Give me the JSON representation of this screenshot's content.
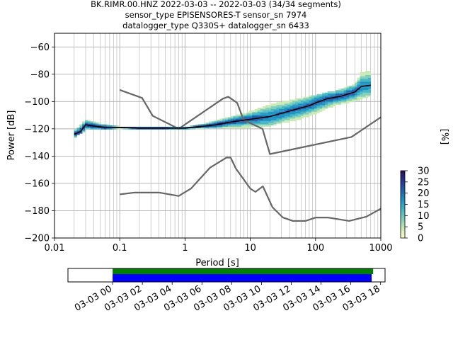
{
  "chart_data": [
    {
      "type": "heatmap",
      "title": [
        "BK.RIMR.00.HNZ   2022-03-03 -- 2022-03-03  (34/34 segments)",
        "sensor_type EPISENSORES-T sensor_sn 7974",
        "datalogger_type Q330S+ datalogger_sn 6433"
      ],
      "xlabel": "Period [s]",
      "ylabel": "Power [dB]",
      "xscale": "log",
      "xlim": [
        0.01,
        1000
      ],
      "ylim": [
        -200,
        -50
      ],
      "xticks": [
        {
          "v": 0.01,
          "label": "0.01"
        },
        {
          "v": 0.1,
          "label": "0.1"
        },
        {
          "v": 1,
          "label": "1"
        },
        {
          "v": 10,
          "label": "10"
        },
        {
          "v": 100,
          "label": "100"
        },
        {
          "v": 1000,
          "label": "1000"
        }
      ],
      "yticks": [
        {
          "v": -60,
          "label": "−60"
        },
        {
          "v": -80,
          "label": "−80"
        },
        {
          "v": -100,
          "label": "−100"
        },
        {
          "v": -120,
          "label": "−120"
        },
        {
          "v": -140,
          "label": "−140"
        },
        {
          "v": -160,
          "label": "−160"
        },
        {
          "v": -180,
          "label": "−180"
        },
        {
          "v": -200,
          "label": "−200"
        }
      ],
      "grid": true,
      "colorbar": {
        "label": "[%]",
        "range": [
          0,
          30
        ],
        "ticks": [
          0,
          5,
          10,
          15,
          20,
          25,
          30
        ],
        "colors": [
          "#ffffcc",
          "#c7e9b4",
          "#7fcdbb",
          "#41b6c4",
          "#1d91c0",
          "#225ea8",
          "#253494",
          "#2d0f5a"
        ]
      },
      "series": [
        {
          "role": "mode",
          "color": "#000000",
          "points": [
            [
              0.02,
              -124
            ],
            [
              0.025,
              -122
            ],
            [
              0.03,
              -117
            ],
            [
              0.04,
              -118
            ],
            [
              0.06,
              -119
            ],
            [
              0.1,
              -119
            ],
            [
              0.2,
              -119.5
            ],
            [
              0.5,
              -119.5
            ],
            [
              1,
              -119.5
            ],
            [
              2,
              -118
            ],
            [
              3,
              -117
            ],
            [
              5,
              -115
            ],
            [
              10,
              -113
            ],
            [
              20,
              -111
            ],
            [
              40,
              -107
            ],
            [
              80,
              -103
            ],
            [
              100,
              -101
            ],
            [
              150,
              -98
            ],
            [
              250,
              -96
            ],
            [
              400,
              -93
            ],
            [
              500,
              -89
            ],
            [
              700,
              -88
            ]
          ]
        },
        {
          "role": "high-noise-model",
          "color": "#666666",
          "points": [
            [
              0.1,
              -91.5
            ],
            [
              0.22,
              -97.4
            ],
            [
              0.32,
              -110.5
            ],
            [
              0.8,
              -120
            ],
            [
              3.8,
              -97.9
            ],
            [
              4.6,
              -96.5
            ],
            [
              6.3,
              -101
            ],
            [
              7.9,
              -113.5
            ],
            [
              15.4,
              -120
            ],
            [
              20,
              -138.5
            ],
            [
              354.8,
              -126
            ],
            [
              1000,
              -111.5
            ]
          ]
        },
        {
          "role": "low-noise-model",
          "color": "#666666",
          "points": [
            [
              0.1,
              -168
            ],
            [
              0.17,
              -166.7
            ],
            [
              0.4,
              -166.7
            ],
            [
              0.8,
              -169.2
            ],
            [
              1.24,
              -163.7
            ],
            [
              2.4,
              -148.6
            ],
            [
              4.3,
              -141.1
            ],
            [
              5,
              -141.1
            ],
            [
              6,
              -149
            ],
            [
              10,
              -163.8
            ],
            [
              12,
              -166.2
            ],
            [
              15.6,
              -162.1
            ],
            [
              21.9,
              -177.5
            ],
            [
              31.6,
              -185
            ],
            [
              45,
              -187.5
            ],
            [
              70,
              -187.5
            ],
            [
              101,
              -185
            ],
            [
              154,
              -185
            ],
            [
              328,
              -187.5
            ],
            [
              600,
              -184.4
            ],
            [
              1000,
              -178.5
            ]
          ]
        },
        {
          "role": "distribution-upper",
          "points": [
            [
              0.02,
              -121
            ],
            [
              0.03,
              -113
            ],
            [
              0.05,
              -116
            ],
            [
              0.1,
              -118
            ],
            [
              1,
              -118.5
            ],
            [
              2,
              -116
            ],
            [
              5,
              -111
            ],
            [
              10,
              -107
            ],
            [
              20,
              -102
            ],
            [
              50,
              -98
            ],
            [
              100,
              -95
            ],
            [
              200,
              -92
            ],
            [
              400,
              -87
            ],
            [
              500,
              -79
            ],
            [
              700,
              -77
            ]
          ]
        },
        {
          "role": "distribution-lower",
          "points": [
            [
              0.02,
              -127
            ],
            [
              0.03,
              -121
            ],
            [
              0.05,
              -120
            ],
            [
              0.1,
              -120
            ],
            [
              1,
              -120.5
            ],
            [
              2,
              -120
            ],
            [
              5,
              -119
            ],
            [
              10,
              -119
            ],
            [
              20,
              -118
            ],
            [
              50,
              -114
            ],
            [
              100,
              -109
            ],
            [
              200,
              -103
            ],
            [
              400,
              -100
            ],
            [
              700,
              -96
            ]
          ]
        }
      ]
    },
    {
      "type": "timeline",
      "xlim_hours": [
        -3,
        18.3
      ],
      "ticks": [
        {
          "v": 0,
          "label": "03-03 00"
        },
        {
          "v": 2,
          "label": "03-03 02"
        },
        {
          "v": 4,
          "label": "03-03 04"
        },
        {
          "v": 6,
          "label": "03-03 06"
        },
        {
          "v": 8,
          "label": "03-03 08"
        },
        {
          "v": 10,
          "label": "03-03 10"
        },
        {
          "v": 12,
          "label": "03-03 12"
        },
        {
          "v": 14,
          "label": "03-03 14"
        },
        {
          "v": 16,
          "label": "03-03 16"
        },
        {
          "v": 18,
          "label": "03-03 18"
        }
      ],
      "bars": [
        {
          "name": "data-coverage",
          "color": "#008000",
          "start": 0,
          "end": 17.5
        },
        {
          "name": "psd-coverage",
          "color": "#0000ff",
          "start": 0,
          "end": 17.4
        }
      ]
    }
  ]
}
